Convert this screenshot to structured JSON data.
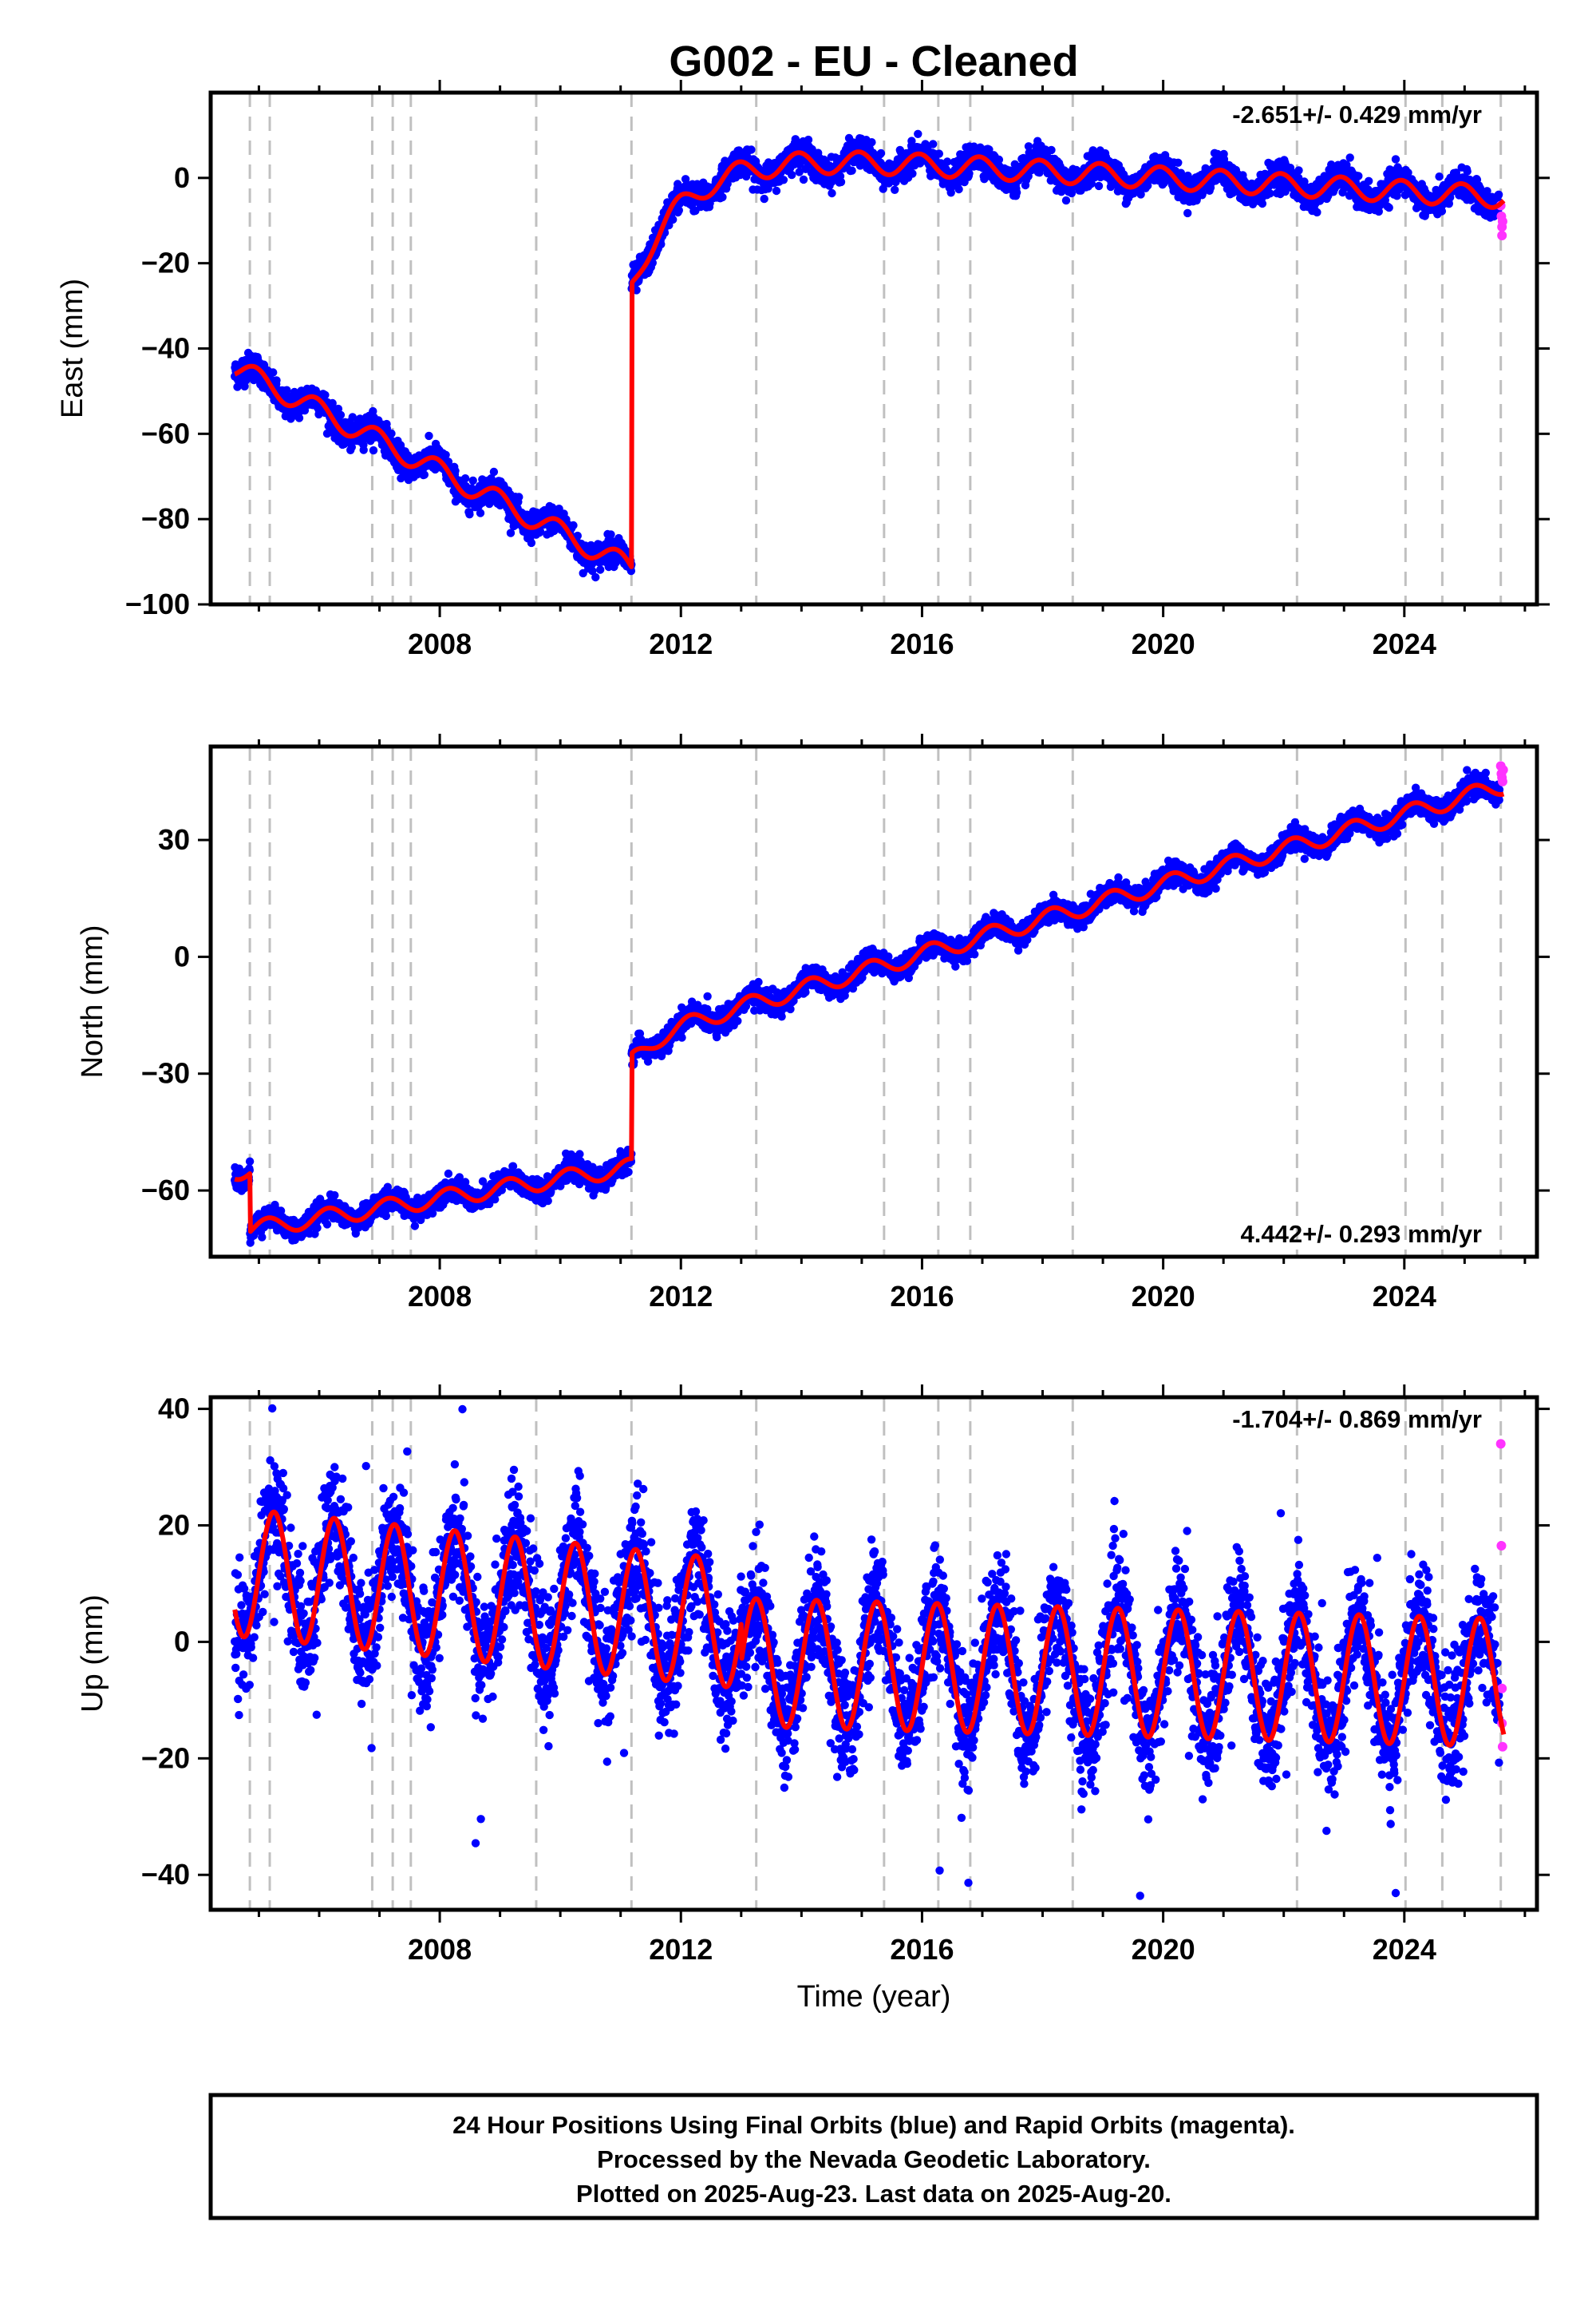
{
  "title": "G002  - EU - Cleaned",
  "xlabel": "Time (year)",
  "colors": {
    "final": "#0000ff",
    "rapid": "#ff33ff",
    "model": "#ff0000",
    "events": "#c0c0c0"
  },
  "chart_data": [
    {
      "type": "scatter",
      "component": "East",
      "ylabel": "East (mm)",
      "rate_label": "-2.651+/- 0.429 mm/yr",
      "rate_position": "top-right",
      "xlim": [
        2004.2,
        2026.2
      ],
      "ylim": [
        -100,
        20
      ],
      "yticks": [
        -100,
        -80,
        -60,
        -40,
        -20,
        0
      ],
      "ytick_labels": [
        "−100",
        "−80",
        "−60",
        "−40",
        "−20",
        "0"
      ],
      "xticks": [
        2008,
        2012,
        2016,
        2020,
        2024
      ],
      "xtick_labels": [
        "2008",
        "2012",
        "2016",
        "2020",
        "2024"
      ],
      "event_lines": [
        2004.85,
        2005.18,
        2006.88,
        2007.22,
        2007.52,
        2009.6,
        2011.18,
        2013.25,
        2015.37,
        2016.27,
        2016.8,
        2018.5,
        2022.22,
        2024.02,
        2024.63,
        2025.6
      ],
      "trend_segments": [
        {
          "x": [
            2004.6,
            2011.18
          ],
          "y": [
            -44.5,
            -91.5
          ]
        },
        {
          "x": [
            2011.18,
            2025.65
          ],
          "y": [
            7.0,
            -4.5
          ]
        }
      ],
      "postseismic": {
        "start": 2011.18,
        "amplitude": -32,
        "tau_years": 0.9
      },
      "seasonal": {
        "amplitude": 2.6,
        "phase": 0.3
      },
      "noise_sd": 1.6,
      "model_series": "continuous",
      "rapid_points": [
        {
          "x": 2025.6,
          "y": -6.5
        },
        {
          "x": 2025.61,
          "y": -9.0
        },
        {
          "x": 2025.62,
          "y": -11.5
        },
        {
          "x": 2025.62,
          "y": -13.5
        },
        {
          "x": 2025.63,
          "y": -10.2
        }
      ]
    },
    {
      "type": "scatter",
      "component": "North",
      "ylabel": "North (mm)",
      "rate_label": "4.442+/- 0.293 mm/yr",
      "rate_position": "bottom-right",
      "xlim": [
        2004.2,
        2026.2
      ],
      "ylim": [
        -77,
        54
      ],
      "yticks": [
        -60,
        -30,
        0,
        30
      ],
      "ytick_labels": [
        "−60",
        "−30",
        "0",
        "30"
      ],
      "xticks": [
        2008,
        2012,
        2016,
        2020,
        2024
      ],
      "xtick_labels": [
        "2008",
        "2012",
        "2016",
        "2020",
        "2024"
      ],
      "event_lines": [
        2004.85,
        2005.18,
        2006.88,
        2007.22,
        2007.52,
        2009.6,
        2011.18,
        2013.25,
        2015.37,
        2016.27,
        2016.8,
        2018.5,
        2022.22,
        2024.02,
        2024.63,
        2025.6
      ],
      "trend_segments": [
        {
          "x": [
            2004.6,
            2004.85
          ],
          "y": [
            -55,
            -55
          ]
        },
        {
          "x": [
            2004.85,
            2011.18
          ],
          "y": [
            -70,
            -54
          ]
        },
        {
          "x": [
            2011.18,
            2025.65
          ],
          "y": [
            -21,
            44
          ]
        }
      ],
      "postseismic": {
        "start": 2011.18,
        "amplitude": -6,
        "tau_years": 0.4
      },
      "seasonal": {
        "amplitude": 2.2,
        "phase": 0.1
      },
      "noise_sd": 1.4,
      "model_series": "continuous",
      "rapid_points": [
        {
          "x": 2025.6,
          "y": 49
        },
        {
          "x": 2025.61,
          "y": 47
        },
        {
          "x": 2025.62,
          "y": 46
        },
        {
          "x": 2025.63,
          "y": 45
        },
        {
          "x": 2025.64,
          "y": 48
        }
      ]
    },
    {
      "type": "scatter",
      "component": "Up",
      "ylabel": "Up (mm)",
      "rate_label": "-1.704+/- 0.869 mm/yr",
      "rate_position": "top-right",
      "xlim": [
        2004.2,
        2026.2
      ],
      "ylim": [
        -46,
        42
      ],
      "yticks": [
        -40,
        -20,
        0,
        20,
        40
      ],
      "ytick_labels": [
        "−40",
        "−20",
        "0",
        "20",
        "40"
      ],
      "xticks": [
        2008,
        2012,
        2016,
        2020,
        2024
      ],
      "xtick_labels": [
        "2008",
        "2012",
        "2016",
        "2020",
        "2024"
      ],
      "event_lines": [
        2004.85,
        2005.18,
        2006.88,
        2007.22,
        2007.52,
        2009.6,
        2011.18,
        2013.25,
        2015.37,
        2016.27,
        2016.8,
        2018.5,
        2022.22,
        2024.02,
        2024.63,
        2025.6
      ],
      "trend_segments": [
        {
          "x": [
            2004.6,
            2013.0
          ],
          "y": [
            12,
            3
          ]
        },
        {
          "x": [
            2013.0,
            2025.65
          ],
          "y": [
            -3.5,
            -7
          ]
        }
      ],
      "postseismic": null,
      "seasonal": {
        "amplitude": 11,
        "phase": 0.0
      },
      "noise_sd": 5.0,
      "model_series": "continuous",
      "rapid_points": [
        {
          "x": 2025.6,
          "y": 34
        },
        {
          "x": 2025.61,
          "y": 16.5
        },
        {
          "x": 2025.62,
          "y": -8
        },
        {
          "x": 2025.62,
          "y": -14
        },
        {
          "x": 2025.63,
          "y": -18
        }
      ]
    }
  ],
  "footer": {
    "line1": "24 Hour Positions Using Final Orbits (blue) and Rapid Orbits (magenta).",
    "line2": "Processed by the Nevada Geodetic Laboratory.",
    "line3": "Plotted on 2025-Aug-23. Last data on 2025-Aug-20."
  }
}
